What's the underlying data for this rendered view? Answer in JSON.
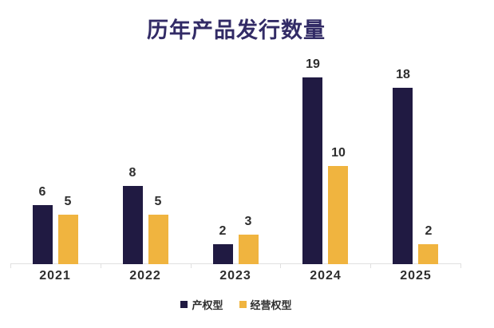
{
  "chart_data": {
    "type": "bar",
    "title": "历年产品发行数量",
    "categories": [
      "2021",
      "2022",
      "2023",
      "2024",
      "2025"
    ],
    "series": [
      {
        "name": "产权型",
        "color": "#201A42",
        "values": [
          6,
          8,
          2,
          19,
          18
        ]
      },
      {
        "name": "经营权型",
        "color": "#F0B43F",
        "values": [
          5,
          5,
          3,
          10,
          2
        ]
      }
    ],
    "xlabel": "",
    "ylabel": "",
    "ylim": [
      0,
      19.7
    ],
    "grid": false,
    "value_labels": true,
    "legend_position": "bottom",
    "colors": {
      "title": "#322B66",
      "axis": "#E0E0E0",
      "text": "#2E2E2E",
      "background": "#FFFFFF"
    }
  }
}
